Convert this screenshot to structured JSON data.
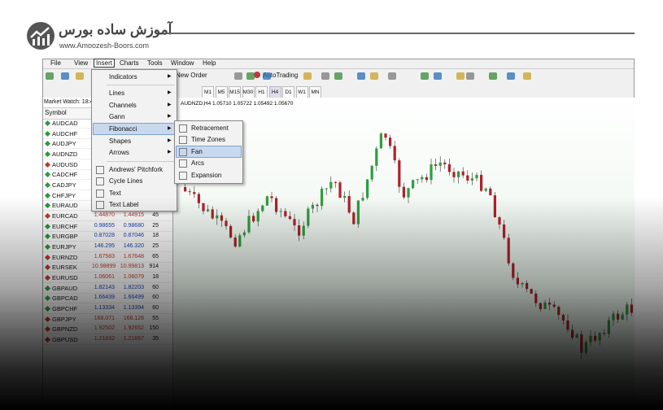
{
  "logo": {
    "title": "آموزش ساده بورس",
    "url": "www.Amoozesh-Boors.com"
  },
  "menu_bar": [
    "File",
    "View",
    "Insert",
    "Charts",
    "Tools",
    "Window",
    "Help"
  ],
  "toolbar": {
    "new_order": "New Order",
    "auto_trading": "AutoTrading"
  },
  "timeframes": [
    "M1",
    "M5",
    "M15",
    "M30",
    "H1",
    "H4",
    "D1",
    "W1",
    "MN"
  ],
  "chart": {
    "header": "AUDNZD,H4 1.05710 1.05722 1.05492 1.05670"
  },
  "market_watch": {
    "title": "Market Watch: 18:4",
    "header": "Symbol",
    "rows": [
      [
        "AUDCAD"
      ],
      [
        "AUDCHF"
      ],
      [
        "AUDJPY"
      ],
      [
        "AUDNZD"
      ],
      [
        "AUDUSD"
      ],
      [
        "CADCHF"
      ],
      [
        "CADJPY"
      ],
      [
        "CHFJPY"
      ],
      [
        "EURAUD"
      ],
      [
        "EURCAD",
        "1.44870",
        "1.44915",
        "45"
      ],
      [
        "EURCHF",
        "0.98655",
        "0.98680",
        "25"
      ],
      [
        "EURGBP",
        "0.87028",
        "0.87046",
        "18"
      ],
      [
        "EURJPY",
        "146.295",
        "146.320",
        "25"
      ],
      [
        "EURNZD",
        "1.67583",
        "1.67648",
        "65"
      ],
      [
        "EURSEK",
        "10.98899",
        "10.99813",
        "914"
      ],
      [
        "EURUSD",
        "1.06061",
        "1.06079",
        "18"
      ],
      [
        "GBPAUD",
        "1.82143",
        "1.82203",
        "60"
      ],
      [
        "GBPCAD",
        "1.66439",
        "1.66499",
        "60"
      ],
      [
        "GBPCHF",
        "1.13334",
        "1.13394",
        "60"
      ],
      [
        "GBPJPY",
        "168.071",
        "168.126",
        "55"
      ],
      [
        "GBPNZD",
        "1.92502",
        "1.92652",
        "150"
      ],
      [
        "GBPUSD",
        "1.21832",
        "1.21867",
        "35"
      ]
    ]
  },
  "insert_menu": {
    "items": [
      "Indicators",
      "Lines",
      "Channels",
      "Gann",
      "Fibonacci",
      "Shapes",
      "Arrows",
      "Andrews' Pitchfork",
      "Cycle Lines",
      "Text",
      "Text Label"
    ]
  },
  "fibonacci_menu": {
    "items": [
      "Retracement",
      "Time Zones",
      "Fan",
      "Arcs",
      "Expansion"
    ]
  }
}
